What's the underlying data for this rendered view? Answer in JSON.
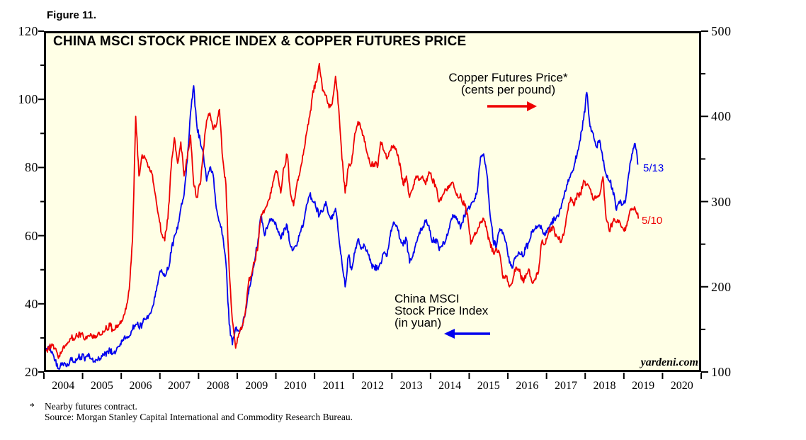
{
  "figure_label": "Figure 11.",
  "watermark": "yardeni.com",
  "footnote": {
    "marker": "*",
    "line1": "Nearby futures contract.",
    "line2": "Source: Morgan Stanley Capital International and Commodity Research Bureau."
  },
  "annotations": {
    "copper_label_line1": "Copper Futures Price*",
    "copper_label_line2": "(cents per pound)",
    "china_label_line1": "China MSCI",
    "china_label_line2": "Stock Price Index",
    "china_label_line3": "(in yuan)",
    "china_end_label": "5/13",
    "copper_end_label": "5/10"
  },
  "colors": {
    "china_line": "#0000EE",
    "copper_line": "#EE0000",
    "plot_background": "#FFFFE6",
    "frame": "#000000"
  },
  "chart_data": {
    "type": "line",
    "title": "CHINA MSCI STOCK PRICE INDEX & COPPER FUTURES PRICE",
    "grid": false,
    "x_axis": {
      "start_year": 2004,
      "end_year": 2021,
      "year_labels": [
        2004,
        2005,
        2006,
        2007,
        2008,
        2009,
        2010,
        2011,
        2012,
        2013,
        2014,
        2015,
        2016,
        2017,
        2018,
        2019,
        2020
      ]
    },
    "left_axis": {
      "min": 20,
      "max": 120,
      "major_ticks": [
        120,
        100,
        80,
        60,
        40,
        20
      ],
      "minor_ticks": [
        110,
        90,
        70,
        50,
        30
      ]
    },
    "right_axis": {
      "min": 100,
      "max": 500,
      "major_ticks": [
        500,
        400,
        300,
        200,
        100
      ],
      "minor_ticks": [
        450,
        350,
        250,
        150
      ]
    },
    "series": [
      {
        "name": "China MSCI Stock Price Index (in yuan)",
        "axis": "left",
        "frequency": "monthly",
        "start": "2004-01",
        "end": "2019-05",
        "end_label": "5/13",
        "values": [
          26.5,
          27.5,
          26,
          23.5,
          21,
          22,
          22.5,
          22,
          23.5,
          23,
          24,
          24.5,
          24,
          25,
          24,
          23,
          23.5,
          24,
          25,
          26,
          26.5,
          25.5,
          26.5,
          27.5,
          29.5,
          30,
          30.5,
          32.5,
          34,
          33,
          34,
          35.5,
          36.5,
          38.5,
          42,
          47,
          50,
          48,
          50,
          55,
          60,
          62,
          68,
          72,
          82,
          96,
          104,
          92,
          88,
          84,
          76,
          80,
          78,
          68,
          64,
          60,
          52,
          34,
          28,
          33,
          32,
          33.5,
          37,
          43,
          48,
          53,
          59,
          66,
          60,
          63,
          65,
          64,
          62,
          59,
          62,
          63,
          57,
          56,
          57,
          61,
          63,
          69,
          72,
          70,
          68,
          66,
          67,
          70,
          66,
          65,
          68,
          60,
          52,
          45,
          54,
          50,
          55,
          59,
          56,
          57,
          55,
          52,
          51,
          50.5,
          52,
          55,
          54,
          60,
          64,
          63,
          59,
          57,
          59,
          52,
          54,
          58,
          61,
          62,
          64,
          63,
          58,
          59,
          56.5,
          57,
          58,
          61,
          65,
          66,
          64,
          63,
          66,
          68,
          69,
          70,
          73,
          83,
          84,
          78,
          66,
          58,
          57,
          62,
          61,
          58,
          52,
          50.5,
          54,
          55,
          54,
          56,
          58,
          61,
          62,
          63,
          62,
          60,
          62,
          64,
          65,
          66,
          68,
          72,
          75,
          78,
          80,
          84,
          88,
          94,
          102,
          92,
          90,
          86,
          88,
          82,
          78,
          76,
          74,
          68,
          70,
          69,
          70,
          78,
          84,
          87,
          81
        ]
      },
      {
        "name": "Copper Futures Price (cents per pound)",
        "axis": "right",
        "frequency": "monthly",
        "start": "2004-01",
        "end": "2019-05",
        "end_label": "5/10",
        "values": [
          125,
          128,
          133,
          128,
          116,
          124,
          130,
          135,
          140,
          138,
          142,
          145,
          138,
          142,
          145,
          140,
          142,
          144,
          147,
          151,
          154,
          149,
          152,
          156,
          162,
          174,
          197,
          255,
          400,
          330,
          355,
          350,
          340,
          333,
          310,
          285,
          262,
          254,
          280,
          340,
          375,
          345,
          370,
          330,
          350,
          378,
          320,
          305,
          320,
          360,
          395,
          404,
          385,
          390,
          408,
          350,
          320,
          220,
          160,
          128,
          145,
          152,
          170,
          205,
          215,
          230,
          250,
          285,
          290,
          300,
          310,
          330,
          335,
          310,
          340,
          355,
          310,
          295,
          320,
          335,
          355,
          380,
          400,
          430,
          440,
          462,
          430,
          425,
          410,
          415,
          447,
          410,
          350,
          310,
          340,
          345,
          380,
          394,
          385,
          370,
          355,
          341,
          345,
          340,
          370,
          360,
          350,
          360,
          366,
          358,
          345,
          320,
          330,
          305,
          315,
          330,
          325,
          330,
          320,
          335,
          325,
          320,
          300,
          305,
          315,
          315,
          322,
          315,
          305,
          305,
          295,
          285,
          250,
          260,
          265,
          275,
          280,
          266,
          252,
          240,
          245,
          238,
          210,
          212,
          200,
          207,
          223,
          218,
          207,
          210,
          221,
          205,
          210,
          217,
          252,
          250,
          262,
          270,
          264,
          258,
          252,
          264,
          288,
          305,
          295,
          310,
          308,
          325,
          320,
          315,
          302,
          305,
          308,
          329,
          280,
          265,
          276,
          276,
          278,
          270,
          266,
          282,
          292,
          292,
          280
        ]
      }
    ]
  }
}
